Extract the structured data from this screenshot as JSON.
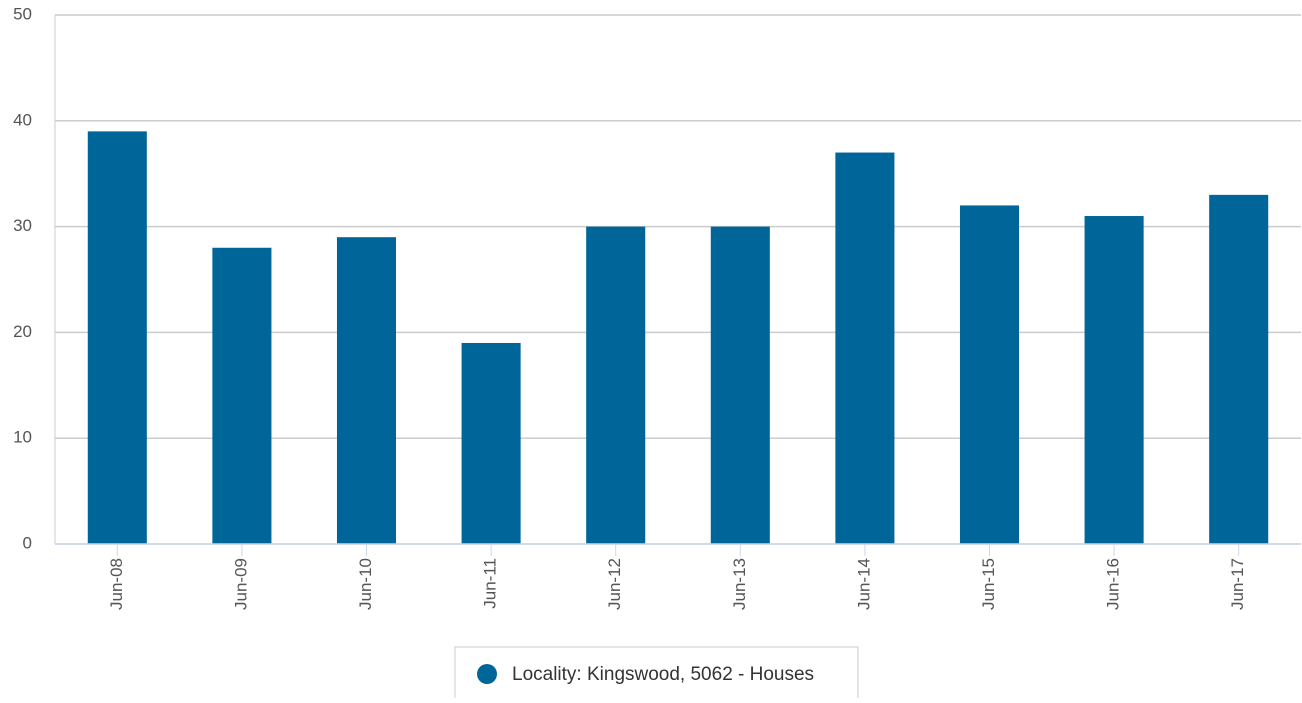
{
  "chart_data": {
    "type": "bar",
    "categories": [
      "Jun-08",
      "Jun-09",
      "Jun-10",
      "Jun-11",
      "Jun-12",
      "Jun-13",
      "Jun-14",
      "Jun-15",
      "Jun-16",
      "Jun-17"
    ],
    "series": [
      {
        "name": "Locality: Kingswood, 5062 - Houses",
        "color": "#006699",
        "values": [
          39,
          28,
          29,
          19,
          30,
          30,
          37,
          32,
          31,
          33
        ]
      }
    ],
    "ylim": [
      0,
      50
    ],
    "yticks": [
      0,
      10,
      20,
      30,
      40,
      50
    ],
    "grid": true,
    "legend": "bottom"
  }
}
